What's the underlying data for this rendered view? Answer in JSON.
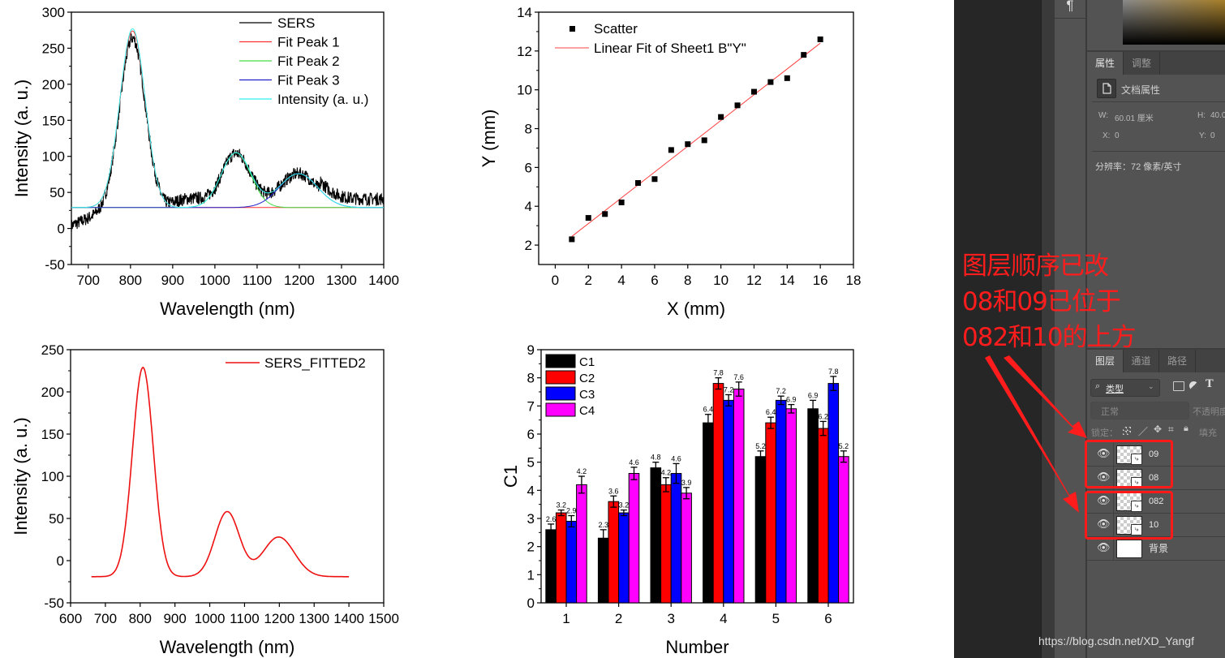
{
  "charts": [
    {
      "id": "sers-fit",
      "type": "line",
      "xlabel": "Wavelength (nm)",
      "ylabel": "Intensity (a. u.)",
      "xlim": [
        660,
        1400
      ],
      "ylim": [
        -50,
        300
      ],
      "xticks": [
        700,
        800,
        900,
        1000,
        1100,
        1200,
        1300,
        1400
      ],
      "yticks": [
        -50,
        0,
        50,
        100,
        150,
        200,
        250,
        300
      ],
      "legend_position": "top-right",
      "series": [
        {
          "name": "SERS",
          "color": "#000000",
          "kind": "noisy-spectrum",
          "baseline": 29,
          "peaks": [
            [
              805,
              235,
              30
            ],
            [
              1050,
              75,
              35
            ],
            [
              1198,
              47,
              45
            ]
          ]
        },
        {
          "name": "Fit Peak 1",
          "color": "#ff3030",
          "kind": "gauss",
          "baseline": 29,
          "peaks": [
            [
              805,
              245,
              30
            ]
          ]
        },
        {
          "name": "Fit Peak 2",
          "color": "#44dd44",
          "kind": "gauss",
          "baseline": 29,
          "peaks": [
            [
              1050,
              76,
              35
            ]
          ]
        },
        {
          "name": "Fit Peak 3",
          "color": "#2222cc",
          "kind": "gauss",
          "baseline": 29,
          "peaks": [
            [
              1198,
              47,
              45
            ]
          ]
        },
        {
          "name": "Intensity (a. u.)",
          "color": "#33f0f0",
          "kind": "gauss",
          "baseline": 29,
          "peaks": [
            [
              805,
              248,
              30
            ],
            [
              1050,
              76,
              35
            ],
            [
              1198,
              47,
              45
            ]
          ]
        }
      ]
    },
    {
      "id": "linear-fit",
      "type": "scatter",
      "xlabel": "X (mm)",
      "ylabel": "Y (mm)",
      "xlim": [
        -1,
        18
      ],
      "ylim": [
        1,
        14
      ],
      "xticks": [
        0,
        2,
        4,
        6,
        8,
        10,
        12,
        14,
        16,
        18
      ],
      "yticks": [
        2,
        4,
        6,
        8,
        10,
        12,
        14
      ],
      "legend_position": "top-left",
      "scatter_name": "Scatter",
      "fit_name": "Linear Fit of Sheet1 B\"Y\"",
      "fit_color": "#ff4040",
      "x": [
        1,
        2,
        3,
        4,
        5,
        6,
        7,
        8,
        9,
        10,
        11,
        12,
        13,
        14,
        15,
        16
      ],
      "y": [
        2.3,
        3.4,
        3.6,
        4.2,
        5.2,
        5.4,
        6.9,
        7.2,
        7.4,
        8.6,
        9.2,
        9.9,
        10.4,
        10.6,
        11.8,
        12.6
      ],
      "fit": {
        "slope": 0.664,
        "intercept": 1.78,
        "x_range": [
          1,
          16
        ]
      }
    },
    {
      "id": "sers-fitted2",
      "type": "line",
      "xlabel": "Wavelength (nm)",
      "ylabel": "Intensity (a. u.)",
      "xlim": [
        600,
        1500
      ],
      "ylim": [
        -50,
        250
      ],
      "xticks": [
        600,
        700,
        800,
        900,
        1000,
        1100,
        1200,
        1300,
        1400,
        1500
      ],
      "yticks": [
        -50,
        0,
        50,
        100,
        150,
        200,
        250
      ],
      "legend_position": "top-right",
      "series": [
        {
          "name": "SERS_FITTED2",
          "color": "#ee1111",
          "kind": "gauss",
          "baseline": -19,
          "x_range": [
            660,
            1400
          ],
          "peaks": [
            [
              808,
              248,
              30
            ],
            [
              1050,
              77,
              35
            ],
            [
              1198,
              47,
              45
            ]
          ]
        }
      ]
    },
    {
      "id": "grouped-bars",
      "type": "bar",
      "xlabel": "Number",
      "ylabel": "C1",
      "xlim": [
        0.52,
        6.48
      ],
      "ylim": [
        0,
        9
      ],
      "categories": [
        "1",
        "2",
        "3",
        "4",
        "5",
        "6"
      ],
      "yticks": [
        0,
        1,
        2,
        3,
        4,
        5,
        6,
        7,
        8,
        9
      ],
      "legend_position": "top-left",
      "series": [
        {
          "name": "C1",
          "color": "#000000",
          "values": [
            2.6,
            2.3,
            4.8,
            6.4,
            5.2,
            6.9
          ],
          "errors": [
            0.2,
            0.3,
            0.2,
            0.3,
            0.2,
            0.3
          ],
          "labels": [
            "2.6",
            "2.3",
            "4.8",
            "6.4",
            "5.2",
            "6.9"
          ]
        },
        {
          "name": "C2",
          "color": "#ff0000",
          "values": [
            3.2,
            3.6,
            4.2,
            7.8,
            6.4,
            6.2
          ],
          "errors": [
            0.1,
            0.2,
            0.25,
            0.2,
            0.2,
            0.25
          ],
          "labels": [
            "3.2",
            "3.6",
            "4.2",
            "7.8",
            "6.4",
            "6.2"
          ]
        },
        {
          "name": "C3",
          "color": "#0000ff",
          "values": [
            2.9,
            3.2,
            4.6,
            7.2,
            7.2,
            7.8
          ],
          "errors": [
            0.2,
            0.1,
            0.35,
            0.2,
            0.15,
            0.25
          ],
          "labels": [
            "2.9",
            "3.2",
            "4.6",
            "7.2",
            "7.2",
            "7.8"
          ]
        },
        {
          "name": "C4",
          "color": "#ff00ff",
          "values": [
            4.2,
            4.6,
            3.9,
            7.6,
            6.9,
            5.2
          ],
          "errors": [
            0.3,
            0.22,
            0.2,
            0.25,
            0.15,
            0.2
          ],
          "labels": [
            "4.2",
            "4.6",
            "3.9",
            "7.6",
            "6.9",
            "5.2"
          ]
        }
      ]
    }
  ],
  "photoshop": {
    "paragraph_icon": "¶",
    "properties_tabs": [
      "属性",
      "调整"
    ],
    "doc_properties_label": "文档属性",
    "width_label": "W:",
    "width_value": "60.01 厘米",
    "height_label": "H:",
    "height_value": "40.0",
    "x_label": "X:",
    "x_value": "0",
    "y_label": "Y:",
    "y_value": "0",
    "resolution": "分辨率：72 像素/英寸",
    "layers_tabs": [
      "图层",
      "通道",
      "路径"
    ],
    "filter_label": "类型",
    "blend_mode": "正常",
    "opacity_label": "不透明度",
    "lock_label": "锁定：",
    "fill_label": "填充",
    "layers": [
      {
        "name": "09",
        "visible": true,
        "smart": true
      },
      {
        "name": "08",
        "visible": true,
        "smart": true
      },
      {
        "name": "082",
        "visible": true,
        "smart": true
      },
      {
        "name": "10",
        "visible": true,
        "smart": true
      },
      {
        "name": "背景",
        "visible": true,
        "smart": false
      }
    ]
  },
  "annotation": {
    "lines": [
      "图层顺序已改",
      "08和09已位于",
      "082和10的上方"
    ],
    "color": "#ff1c1c"
  },
  "watermark": "https://blog.csdn.net/XD_Yangf"
}
